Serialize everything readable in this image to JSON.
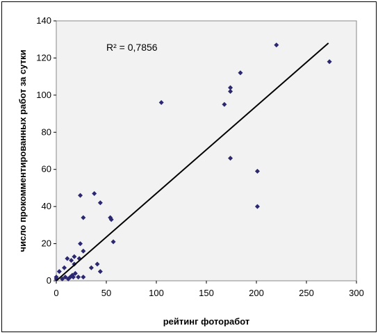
{
  "chart_data": {
    "type": "scatter",
    "xlabel": "рейтинг фоторабот",
    "ylabel": "число прокомментированных работ за сутки",
    "annotation": "R² = 0,7856",
    "xlim": [
      0,
      300
    ],
    "ylim": [
      0,
      140
    ],
    "xticks": [
      "0",
      "50",
      "100",
      "150",
      "200",
      "250",
      "300"
    ],
    "yticks": [
      "0",
      "20",
      "40",
      "60",
      "80",
      "100",
      "120",
      "140"
    ],
    "grid": false,
    "marker": "diamond",
    "colors": {
      "points": "#2b2870",
      "trendline": "#000000",
      "plot_bg": "#f2f2f2"
    },
    "trendline": {
      "from": [
        0,
        0
      ],
      "to": [
        272,
        128
      ]
    },
    "points": [
      [
        0,
        2
      ],
      [
        0,
        1
      ],
      [
        3,
        5
      ],
      [
        6,
        1
      ],
      [
        8,
        7
      ],
      [
        9,
        2
      ],
      [
        11,
        12
      ],
      [
        12,
        1
      ],
      [
        14,
        2
      ],
      [
        15,
        11
      ],
      [
        16,
        3
      ],
      [
        17,
        2
      ],
      [
        18,
        13
      ],
      [
        18,
        9
      ],
      [
        19,
        4
      ],
      [
        22,
        2
      ],
      [
        23,
        12
      ],
      [
        24,
        20
      ],
      [
        24,
        46
      ],
      [
        27,
        34
      ],
      [
        27,
        16
      ],
      [
        27,
        2
      ],
      [
        35,
        7
      ],
      [
        38,
        47
      ],
      [
        41,
        9
      ],
      [
        44,
        42
      ],
      [
        44,
        5
      ],
      [
        54,
        34
      ],
      [
        55,
        33
      ],
      [
        57,
        21
      ],
      [
        105,
        96
      ],
      [
        168,
        95
      ],
      [
        174,
        104
      ],
      [
        174,
        102
      ],
      [
        174,
        66
      ],
      [
        184,
        112
      ],
      [
        201,
        59
      ],
      [
        201,
        40
      ],
      [
        220,
        127
      ],
      [
        273,
        118
      ]
    ]
  }
}
